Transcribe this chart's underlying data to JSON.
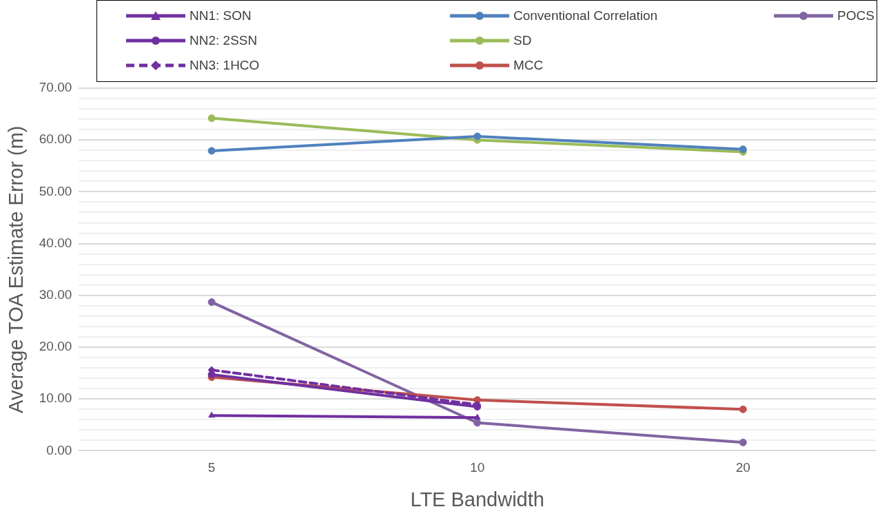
{
  "chart_data": {
    "type": "line",
    "xlabel": "LTE Bandwidth",
    "ylabel": "Average TOA Estimate Error (m)",
    "categories": [
      "5",
      "10",
      "20"
    ],
    "series": [
      {
        "name": "NN1: SON",
        "color": "#7030a0",
        "marker": "triangle",
        "values": [
          6.8,
          6.4,
          null
        ]
      },
      {
        "name": "NN2: 2SSN",
        "color": "#7030a0",
        "marker": "circle",
        "values": [
          14.7,
          8.5,
          null
        ]
      },
      {
        "name": "NN3: 1HCO",
        "color": "#7030a0",
        "marker": "diamond",
        "line_style": "dashed",
        "values": [
          15.6,
          8.9,
          null
        ]
      },
      {
        "name": "Conventional Correlation",
        "color": "#4f81bd",
        "marker": "circle",
        "values": [
          57.9,
          60.7,
          58.2
        ]
      },
      {
        "name": "SD",
        "color": "#9bbb59",
        "marker": "circle",
        "values": [
          64.2,
          60.0,
          57.7
        ]
      },
      {
        "name": "MCC",
        "color": "#c0504d",
        "marker": "circle",
        "values": [
          14.2,
          9.8,
          8.0
        ]
      },
      {
        "name": "POCS",
        "color": "#8064a2",
        "marker": "circle",
        "values": [
          28.7,
          5.4,
          1.6
        ]
      }
    ],
    "ylim": [
      0,
      70
    ],
    "yticks": [
      {
        "value": 0,
        "label": "0.00"
      },
      {
        "value": 2,
        "label": null
      },
      {
        "value": 4,
        "label": null
      },
      {
        "value": 6,
        "label": null
      },
      {
        "value": 8,
        "label": null
      },
      {
        "value": 10,
        "label": "10.00"
      },
      {
        "value": 12,
        "label": null
      },
      {
        "value": 14,
        "label": null
      },
      {
        "value": 16,
        "label": null
      },
      {
        "value": 18,
        "label": null
      },
      {
        "value": 20,
        "label": "20.00"
      },
      {
        "value": 22,
        "label": null
      },
      {
        "value": 24,
        "label": null
      },
      {
        "value": 26,
        "label": null
      },
      {
        "value": 28,
        "label": null
      },
      {
        "value": 30,
        "label": "30.00"
      },
      {
        "value": 32,
        "label": null
      },
      {
        "value": 34,
        "label": null
      },
      {
        "value": 36,
        "label": null
      },
      {
        "value": 38,
        "label": null
      },
      {
        "value": 40,
        "label": "40.00"
      },
      {
        "value": 42,
        "label": null
      },
      {
        "value": 44,
        "label": null
      },
      {
        "value": 46,
        "label": null
      },
      {
        "value": 48,
        "label": null
      },
      {
        "value": 50,
        "label": "50.00"
      },
      {
        "value": 52,
        "label": null
      },
      {
        "value": 54,
        "label": null
      },
      {
        "value": 56,
        "label": null
      },
      {
        "value": 58,
        "label": null
      },
      {
        "value": 60,
        "label": "60.00"
      },
      {
        "value": 62,
        "label": null
      },
      {
        "value": 64,
        "label": null
      },
      {
        "value": 66,
        "label": null
      },
      {
        "value": 68,
        "label": null
      },
      {
        "value": 70,
        "label": "70.00"
      }
    ],
    "grid": "y",
    "legend": "top"
  }
}
